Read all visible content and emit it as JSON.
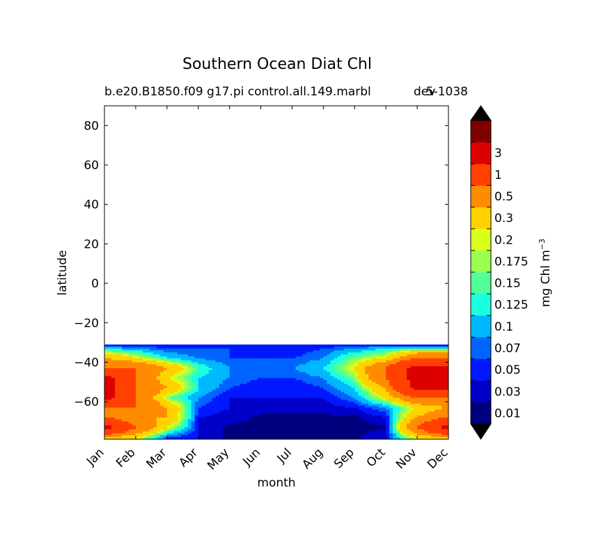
{
  "chart_data": {
    "type": "heatmap",
    "title": "Southern Ocean Diat Chl",
    "subtitle_left": "b.e20.B1850.f09 g17.pi control.all.149.marbl",
    "subtitle_right": "5-1038",
    "subtitle_overlap": "dev",
    "xlabel": "month",
    "ylabel": "latitude",
    "x_ticks": [
      "Jan",
      "Feb",
      "Mar",
      "Apr",
      "May",
      "Jun",
      "Jul",
      "Aug",
      "Sep",
      "Oct",
      "Nov",
      "Dec"
    ],
    "y_ticks": [
      80,
      60,
      40,
      20,
      0,
      -20,
      -40,
      -60
    ],
    "ylim": [
      -79,
      90
    ],
    "data_lat_range": [
      -79,
      -31
    ],
    "colorbar": {
      "label": "mg Chl m",
      "label_superscript": "−3",
      "tick_labels": [
        "0.01",
        "0.03",
        "0.05",
        "0.07",
        "0.1",
        "0.125",
        "0.15",
        "0.175",
        "0.2",
        "0.3",
        "0.5",
        "1",
        "3"
      ],
      "levels": [
        0,
        0.01,
        0.03,
        0.05,
        0.07,
        0.1,
        0.125,
        0.15,
        0.175,
        0.2,
        0.3,
        0.5,
        1,
        3
      ],
      "colors": [
        "#00007f",
        "#0000c8",
        "#0018ff",
        "#0064ff",
        "#00b8ff",
        "#19ffe0",
        "#50ff9a",
        "#9aff50",
        "#d8ff1a",
        "#ffd200",
        "#ff8c00",
        "#ff4000",
        "#dd0000",
        "#800000"
      ],
      "over_color": "#000000",
      "under_color": "#000000"
    },
    "latitudes": [
      -31,
      -33,
      -38,
      -43,
      -48,
      -53,
      -58,
      -63,
      -68,
      -73,
      -78
    ],
    "months": [
      1,
      2,
      3,
      4,
      5,
      6,
      7,
      8,
      9,
      10,
      11,
      12
    ],
    "values": [
      [
        0.03,
        0.03,
        0.03,
        0.03,
        0.03,
        0.03,
        0.03,
        0.03,
        0.03,
        0.03,
        0.03,
        0.03
      ],
      [
        0.1,
        0.07,
        0.05,
        0.05,
        0.05,
        0.03,
        0.03,
        0.05,
        0.07,
        0.1,
        0.1,
        0.1
      ],
      [
        0.3,
        0.2,
        0.1,
        0.07,
        0.05,
        0.05,
        0.05,
        0.07,
        0.15,
        0.2,
        0.5,
        0.5
      ],
      [
        0.5,
        0.5,
        0.3,
        0.125,
        0.07,
        0.05,
        0.07,
        0.1,
        0.2,
        0.5,
        1.2,
        1.2
      ],
      [
        1.2,
        0.5,
        0.2,
        0.1,
        0.07,
        0.05,
        0.05,
        0.07,
        0.15,
        0.5,
        1.2,
        1.2
      ],
      [
        1.2,
        0.5,
        0.3,
        0.1,
        0.05,
        0.03,
        0.03,
        0.05,
        0.1,
        0.3,
        1.2,
        1.2
      ],
      [
        1.2,
        0.5,
        0.15,
        0.07,
        0.03,
        0.03,
        0.03,
        0.03,
        0.07,
        0.2,
        0.5,
        0.5
      ],
      [
        0.5,
        0.5,
        0.3,
        0.05,
        0.03,
        0.02,
        0.02,
        0.02,
        0.03,
        0.07,
        0.2,
        0.3
      ],
      [
        0.5,
        0.3,
        0.3,
        0.03,
        0.02,
        0.005,
        0.005,
        0.005,
        0.005,
        0.03,
        0.3,
        0.5
      ],
      [
        1.2,
        0.5,
        0.2,
        0.03,
        0.005,
        0.005,
        0.005,
        0.005,
        0.005,
        0.005,
        0.5,
        1.2
      ],
      [
        0.3,
        0.2,
        0.05,
        0.03,
        0.005,
        0.005,
        0.005,
        0.005,
        0.005,
        0.03,
        0.2,
        0.3
      ]
    ]
  }
}
